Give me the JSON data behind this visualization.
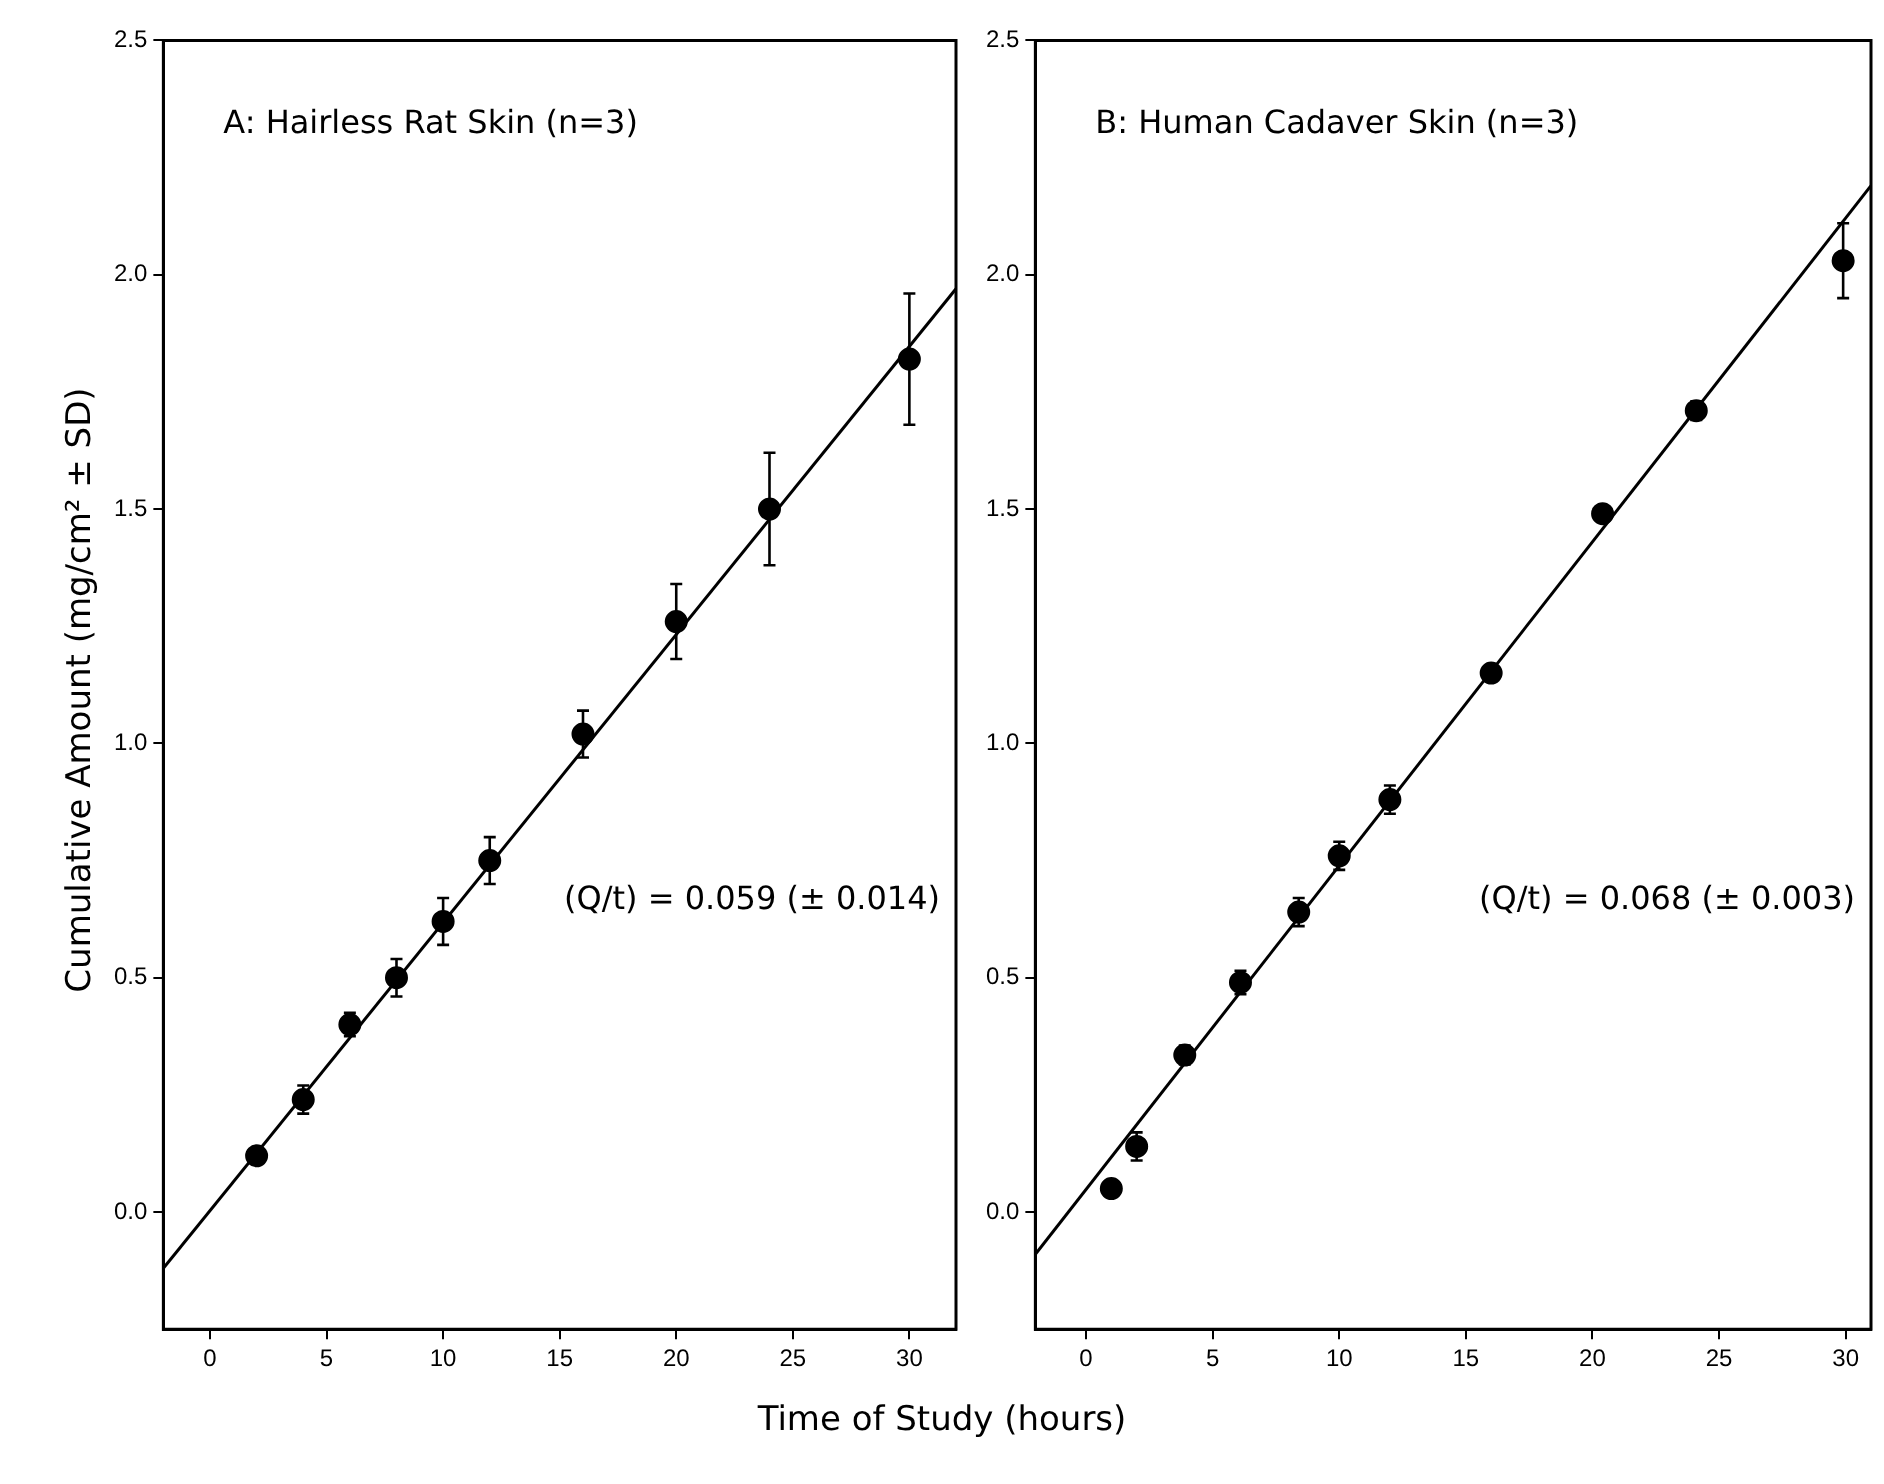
{
  "chart_data": [
    {
      "type": "scatter",
      "title": "A: Hairless Rat Skin (n=3)",
      "ylabel": "Cumulative Amount (mg/cm² ± SD)",
      "xlabel": "Time of Study (hours)",
      "annotations": [
        "(Q/t) = 0.059 (± 0.014)"
      ],
      "xlim": [
        -2,
        32
      ],
      "xticks": [
        0,
        5,
        10,
        15,
        20,
        25,
        30
      ],
      "ylim": [
        -0.25,
        2.5
      ],
      "yticks": [
        {
          "value": 0,
          "label": "0.0"
        },
        {
          "value": 0.5,
          "label": "0.5"
        },
        {
          "value": 1,
          "label": "1.0"
        },
        {
          "value": 1.5,
          "label": "1.5"
        },
        {
          "value": 2,
          "label": "2.0"
        },
        {
          "value": 2.5,
          "label": "2.5"
        }
      ],
      "grid": false,
      "marker": "circle",
      "series": [
        {
          "color": "#000000",
          "x": [
            2,
            4,
            6,
            8,
            10,
            12,
            16,
            20,
            24,
            30
          ],
          "values": [
            0.12,
            0.24,
            0.4,
            0.5,
            0.62,
            0.75,
            1.02,
            1.26,
            1.5,
            1.82
          ],
          "errors": [
            null,
            0.03,
            0.025,
            0.04,
            0.05,
            0.05,
            0.05,
            0.08,
            0.12,
            0.14
          ]
        },
        {
          "type": "line",
          "color": "#000000",
          "marker": "none",
          "x": [
            -2,
            32
          ],
          "values": [
            -0.12,
            1.97
          ]
        }
      ]
    },
    {
      "type": "scatter",
      "title": "B: Human Cadaver Skin (n=3)",
      "annotations": [
        "(Q/t) = 0.068 (± 0.003)"
      ],
      "xlim": [
        -2,
        31
      ],
      "xticks": [
        0,
        5,
        10,
        15,
        20,
        25,
        30
      ],
      "ylim": [
        -0.25,
        2.5
      ],
      "yticks": [
        {
          "value": 0,
          "label": "0.0"
        },
        {
          "value": 0.5,
          "label": "0.5"
        },
        {
          "value": 1,
          "label": "1.0"
        },
        {
          "value": 1.5,
          "label": "1.5"
        },
        {
          "value": 2,
          "label": "2.0"
        },
        {
          "value": 2.5,
          "label": "2.5"
        }
      ],
      "grid": false,
      "marker": "circle",
      "series": [
        {
          "color": "#000000",
          "x": [
            1,
            2,
            3.9,
            6.1,
            8.4,
            10,
            12,
            16,
            20.4,
            24.1,
            29.9
          ],
          "values": [
            0.05,
            0.14,
            0.335,
            0.49,
            0.64,
            0.76,
            0.88,
            1.15,
            1.49,
            1.71,
            2.03
          ],
          "errors": [
            null,
            0.03,
            0.02,
            0.025,
            0.03,
            0.03,
            0.03,
            null,
            null,
            0.02,
            0.08
          ]
        },
        {
          "type": "line",
          "color": "#000000",
          "marker": "none",
          "x": [
            -2,
            31
          ],
          "values": [
            -0.09,
            2.19
          ]
        }
      ]
    }
  ]
}
